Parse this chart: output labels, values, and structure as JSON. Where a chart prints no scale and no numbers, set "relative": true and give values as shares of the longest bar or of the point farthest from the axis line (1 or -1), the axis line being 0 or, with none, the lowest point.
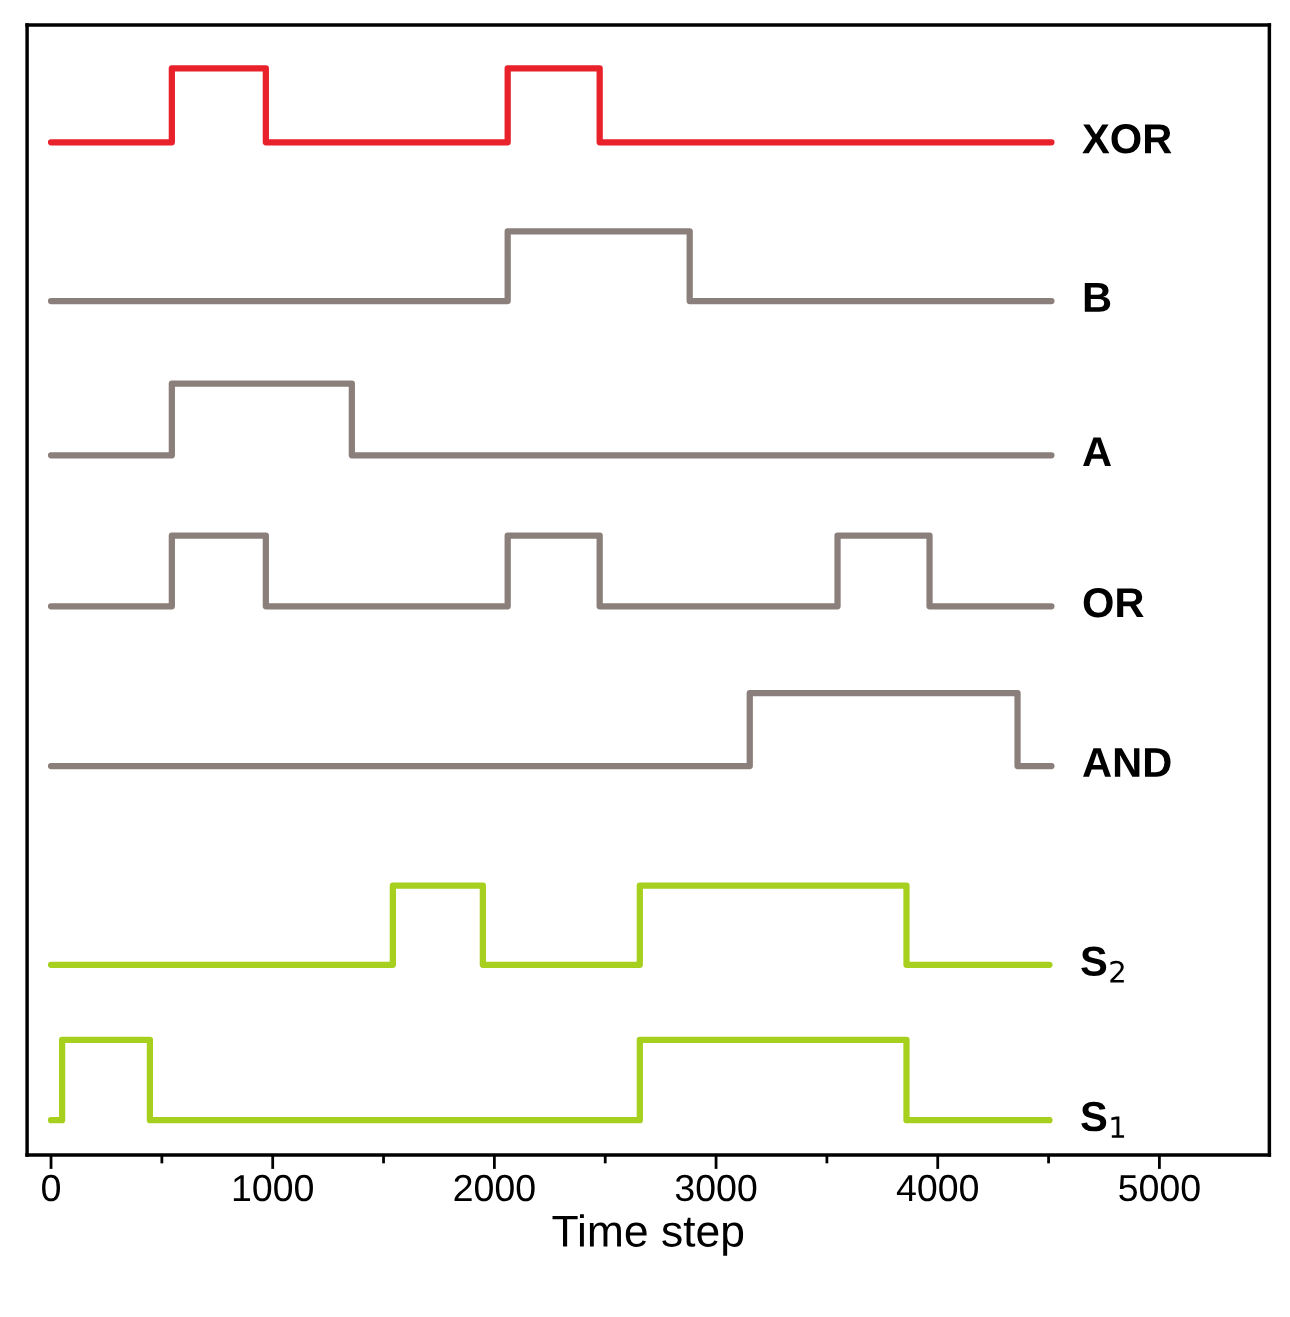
{
  "chart_data": {
    "type": "step",
    "relative": true,
    "xlabel": "Time step",
    "xlim": [
      -108,
      5496
    ],
    "xticks": [
      0,
      1000,
      2000,
      3000,
      4000,
      5000
    ],
    "tick_labels": "x",
    "grid": false,
    "series": [
      {
        "name": "XOR",
        "color": "#e8212b",
        "x": [
          0,
          545,
          969,
          2060,
          2475,
          4513
        ],
        "values": [
          0.932,
          1.0,
          0.932,
          1.0,
          0.932,
          0.932
        ]
      },
      {
        "name": "B",
        "color": "#8a7f7a",
        "x": [
          0,
          2060,
          2881,
          4513
        ],
        "values": [
          0.786,
          0.85,
          0.786,
          0.786
        ]
      },
      {
        "name": "A",
        "color": "#8a7f7a",
        "x": [
          0,
          545,
          1357,
          4513
        ],
        "values": [
          0.644,
          0.71,
          0.644,
          0.644
        ]
      },
      {
        "name": "OR",
        "color": "#8a7f7a",
        "x": [
          0,
          545,
          969,
          2060,
          2475,
          3548,
          3963,
          4513
        ],
        "values": [
          0.505,
          0.57,
          0.505,
          0.57,
          0.505,
          0.57,
          0.505,
          0.505
        ]
      },
      {
        "name": "AND",
        "color": "#8a7f7a",
        "x": [
          0,
          3152,
          4360,
          4513
        ],
        "values": [
          0.358,
          0.425,
          0.358,
          0.358
        ]
      },
      {
        "name": "S$_{2}$",
        "color": "#a6cf1e",
        "x": [
          0,
          1542,
          1948,
          2656,
          3859,
          4504
        ],
        "values": [
          0.175,
          0.248,
          0.175,
          0.248,
          0.175,
          0.175
        ]
      },
      {
        "name": "S$_{1}$",
        "color": "#a6cf1e",
        "x": [
          0,
          50,
          446,
          2656,
          3859,
          4504
        ],
        "values": [
          0.032,
          0.106,
          0.032,
          0.106,
          0.032,
          0.032
        ]
      }
    ]
  }
}
